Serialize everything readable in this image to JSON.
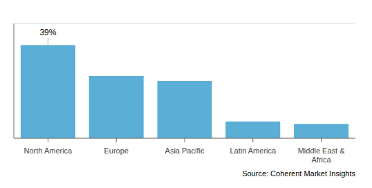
{
  "chart_data": {
    "type": "bar",
    "categories": [
      "North America",
      "Europe",
      "Asia Pacific",
      "Latin America",
      "Middle East &\nAfrica"
    ],
    "values": [
      39,
      26,
      24,
      7,
      6
    ],
    "color": "#5bafd6",
    "ylim": [
      0,
      48
    ],
    "yticks": [
      0,
      4.8,
      9.6,
      14.4,
      19.2,
      24,
      28.8,
      33.6,
      38.4,
      43.2,
      48
    ],
    "grid": true,
    "tick_labels": "x",
    "annotations": [
      {
        "text": "39%",
        "x": "North America",
        "y": 39
      },
      {
        "text": "Source: Coherent Market Insights"
      }
    ]
  }
}
